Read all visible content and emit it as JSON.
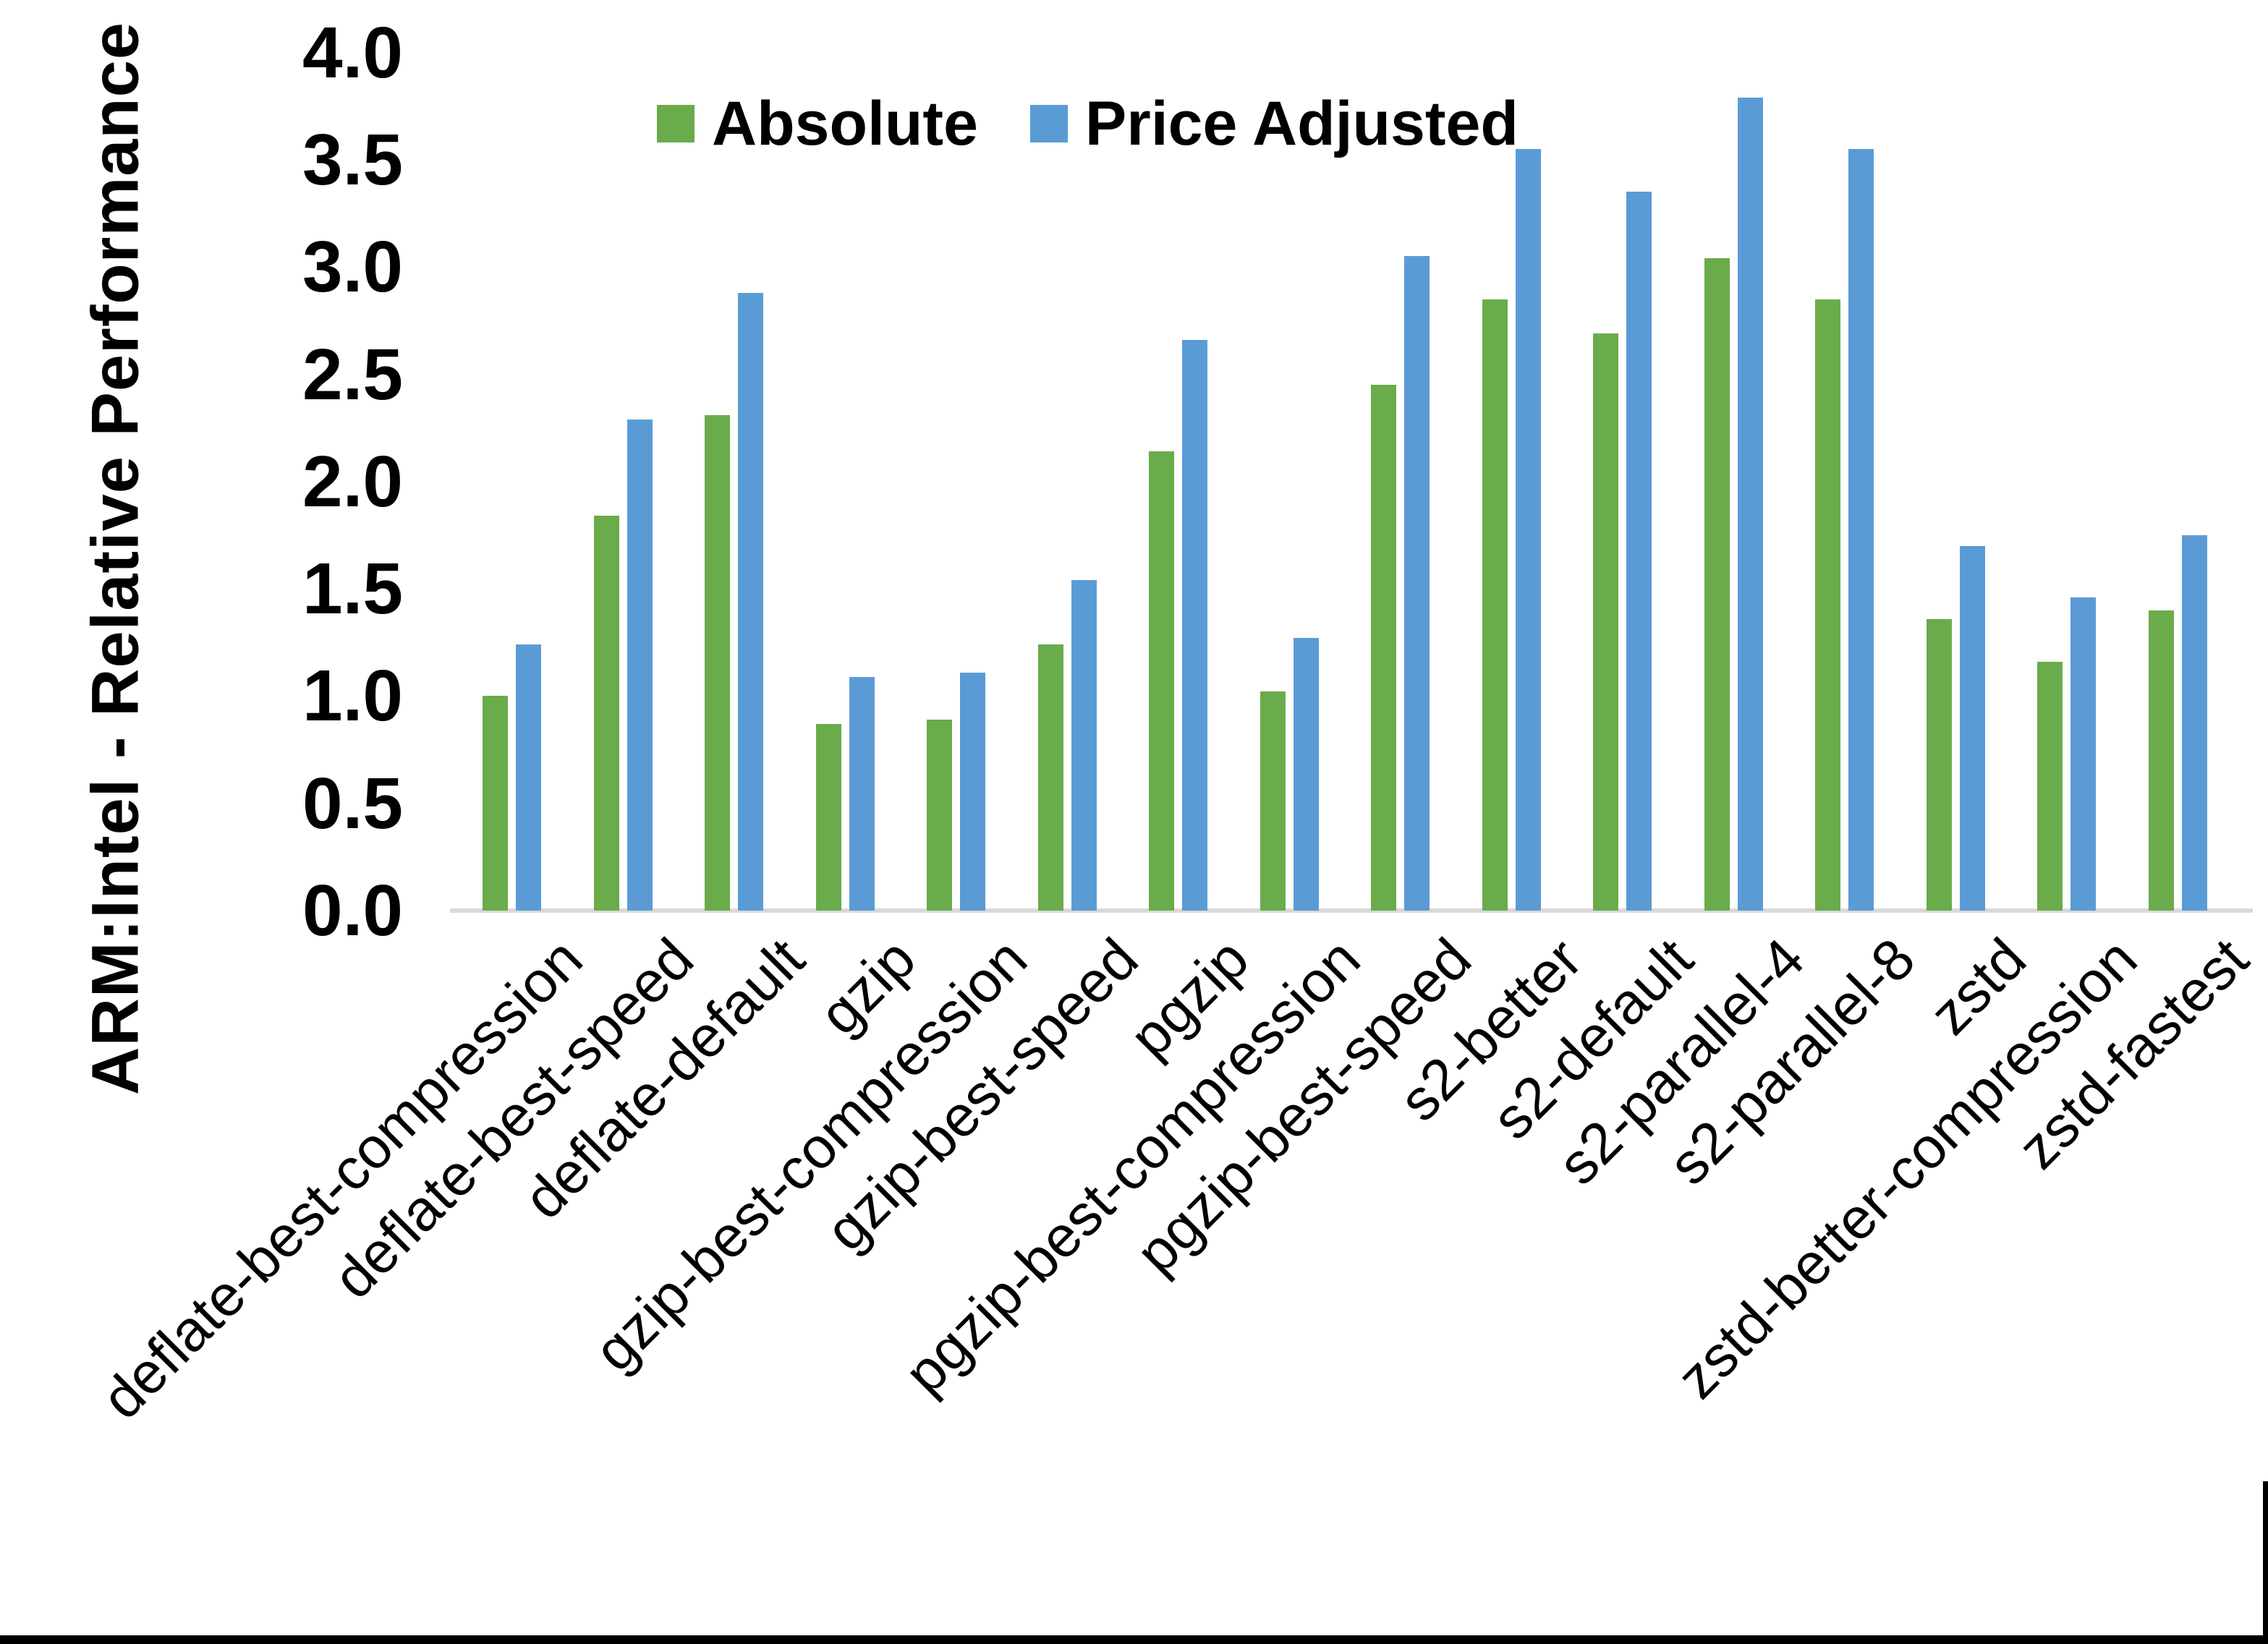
{
  "chart_data": {
    "type": "bar",
    "title": "",
    "xlabel": "",
    "ylabel": "ARM:Intel - Relative Performance",
    "ylim": [
      0.0,
      4.0
    ],
    "ytick_step": 0.5,
    "grid": false,
    "legend_position": "top-center-inside",
    "x_label_rotation_deg": 45,
    "categories": [
      "deflate-best-compression",
      "deflate-best-speed",
      "deflate-default",
      "gzip",
      "gzip-best-compression",
      "gzip-best-speed",
      "pgzip",
      "pgzip-best-compression",
      "pgzip-best-speed",
      "s2-better",
      "s2-default",
      "s2-parallel-4",
      "s2-parallel-8",
      "zstd",
      "zstd-better-compression",
      "zstd-fastest"
    ],
    "series": [
      {
        "name": "Absolute",
        "color": "#6aab4b",
        "values": [
          1.0,
          1.84,
          2.31,
          0.87,
          0.89,
          1.24,
          2.14,
          1.02,
          2.45,
          2.85,
          2.69,
          3.04,
          2.85,
          1.36,
          1.16,
          1.4
        ]
      },
      {
        "name": "Price Adjusted",
        "color": "#5b9bd5",
        "values": [
          1.24,
          2.29,
          2.88,
          1.09,
          1.11,
          1.54,
          2.66,
          1.27,
          3.05,
          3.55,
          3.35,
          3.79,
          3.55,
          1.7,
          1.46,
          1.75
        ]
      }
    ]
  },
  "axis": {
    "y_tick_labels": [
      "4.0",
      "3.5",
      "3.0",
      "2.5",
      "2.0",
      "1.5",
      "1.0",
      "0.5",
      "0.0"
    ],
    "axis_line_color": "#d9d9d9",
    "text_color": "#000000"
  },
  "borders": {
    "color": "#000000"
  }
}
